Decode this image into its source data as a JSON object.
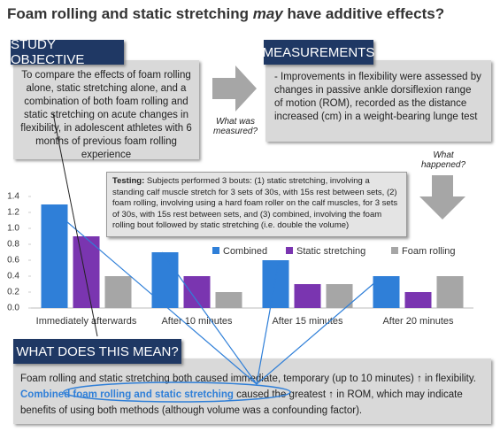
{
  "title": [
    "Foam rolling and static stretching ",
    "may",
    " have additive effects?"
  ],
  "objective": {
    "header": "STUDY OBJECTIVE",
    "text": "To compare the effects of foam rolling alone, static stretching alone, and a combination of both foam rolling and static stretching on acute changes in flexibility, in adolescent athletes with 6 months of previous foam rolling experience"
  },
  "measured_label": "What was measured?",
  "measurements": {
    "header": "MEASUREMENTS",
    "text": "- Improvements in flexibility were assessed by changes in passive ankle dorsiflexion range of motion (ROM), recorded as the distance increased (cm) in a weight-bearing lunge test"
  },
  "happened_label": "What happened?",
  "testing": [
    "Testing:",
    " Subjects performed 3 bouts: (1) static stretching, involving a standing calf muscle stretch for 3 sets of 30s, with 15s rest between sets, (2) foam rolling, involving using a hard foam roller on the calf muscles, for 3 sets of 30s, with 15s rest between sets, and (3) combined, involving the foam rolling bout followed by static stretching (i.e. double the volume)"
  ],
  "meaning": {
    "header": "WHAT DOES THIS MEAN?",
    "text": [
      "Foam rolling and static stretching both caused immediate, temporary (up to 10 minutes) ↑ in flexibility. ",
      "Combined foam rolling and static stretching",
      " caused the greatest ↑ in ROM, which may indicate benefits of using both methods (although volume was a confounding factor)."
    ]
  },
  "chart_data": {
    "type": "bar",
    "categories": [
      "Immediately afterwards",
      "After 10 minutes",
      "After 15 minutes",
      "After 20 minutes"
    ],
    "series": [
      {
        "name": "Combined",
        "color": "#2f7fd8",
        "values": [
          1.3,
          0.7,
          0.6,
          0.4
        ]
      },
      {
        "name": "Static stretching",
        "color": "#7a35b0",
        "values": [
          0.9,
          0.4,
          0.3,
          0.2
        ]
      },
      {
        "name": "Foam rolling",
        "color": "#a6a6a6",
        "values": [
          0.4,
          0.2,
          0.3,
          0.4
        ]
      }
    ],
    "ylim": [
      0,
      1.4
    ],
    "yticks": [
      {
        "value": 0,
        "label": "0.0"
      },
      0.2,
      0.4,
      0.6,
      0.8,
      {
        "value": 1,
        "label": "1.0"
      },
      1.2,
      1.4
    ],
    "grid": false
  }
}
